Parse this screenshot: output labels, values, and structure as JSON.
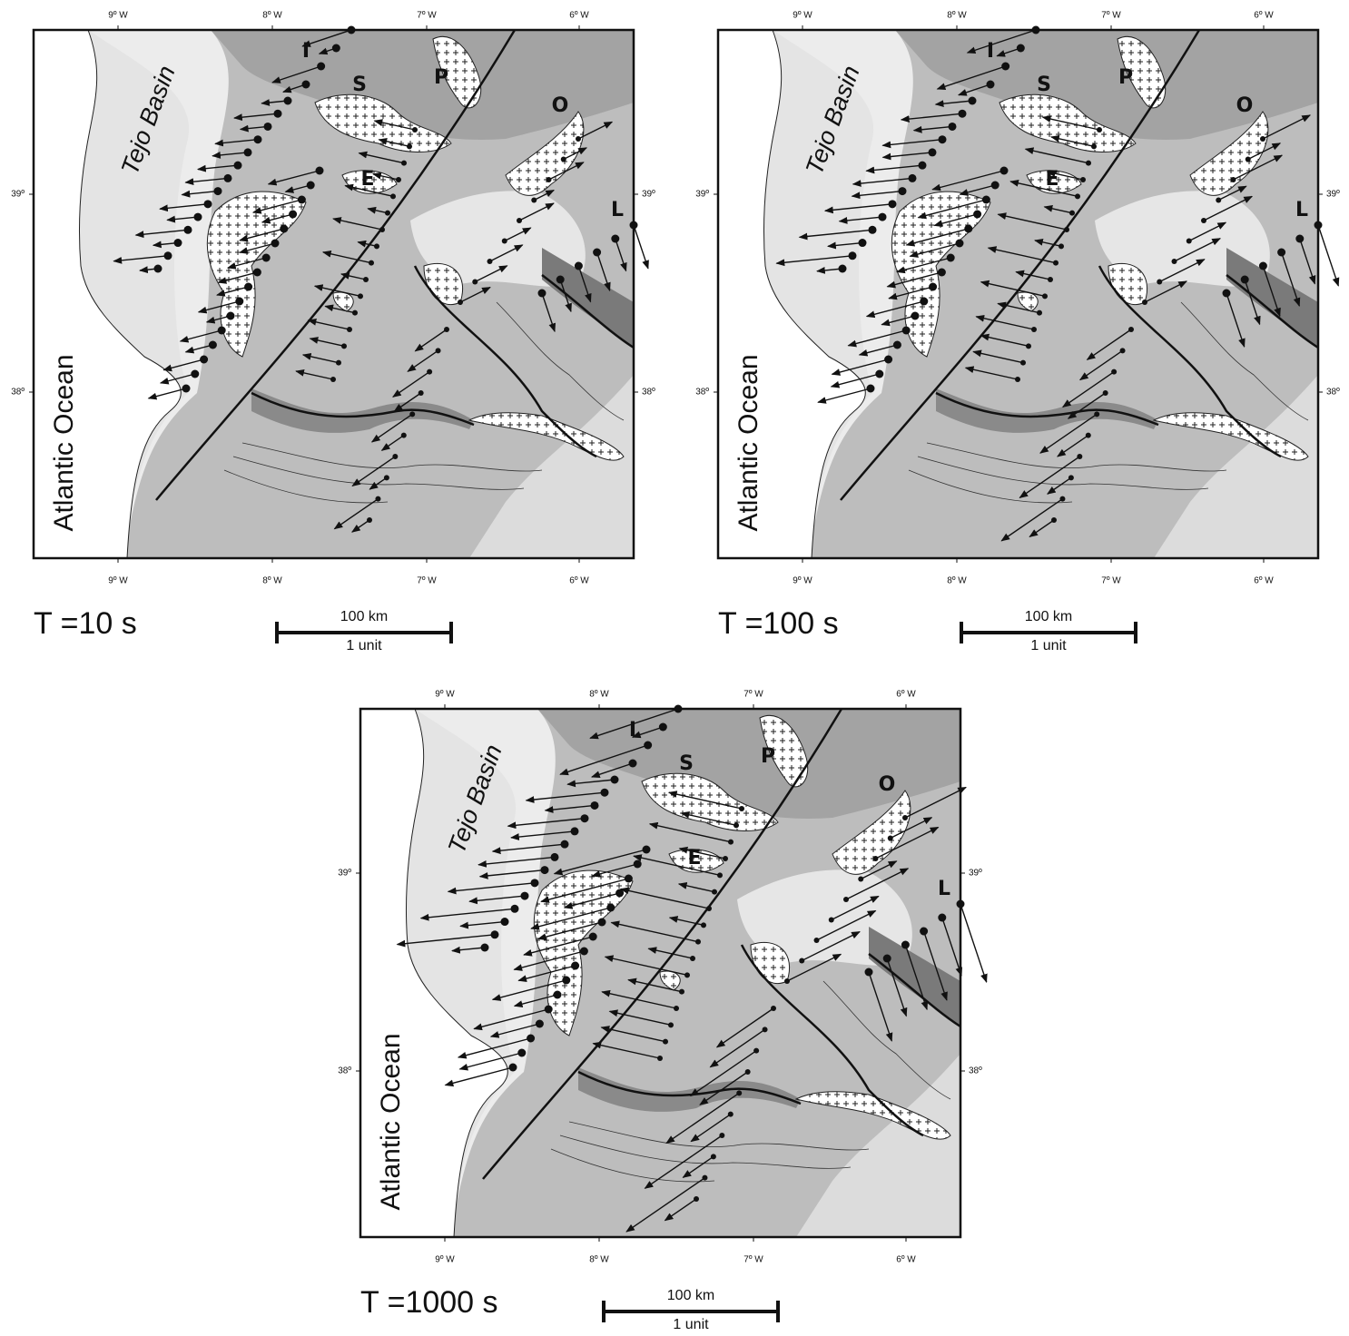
{
  "axes": {
    "lon_labels": [
      "9º W",
      "8º W",
      "7º W",
      "6º W"
    ],
    "lat_labels": [
      "39º",
      "38º"
    ]
  },
  "map_labels": {
    "basin": "Tejo Basin",
    "ocean": "Atlantic Ocean",
    "zones": [
      "I",
      "S",
      "P",
      "O",
      "E",
      "L"
    ]
  },
  "scale_bar": {
    "distance": "100 km",
    "unit": "1 unit"
  },
  "panels": [
    {
      "title": "T =10 s"
    },
    {
      "title": "T =100 s"
    },
    {
      "title": "T =1000 s"
    }
  ]
}
